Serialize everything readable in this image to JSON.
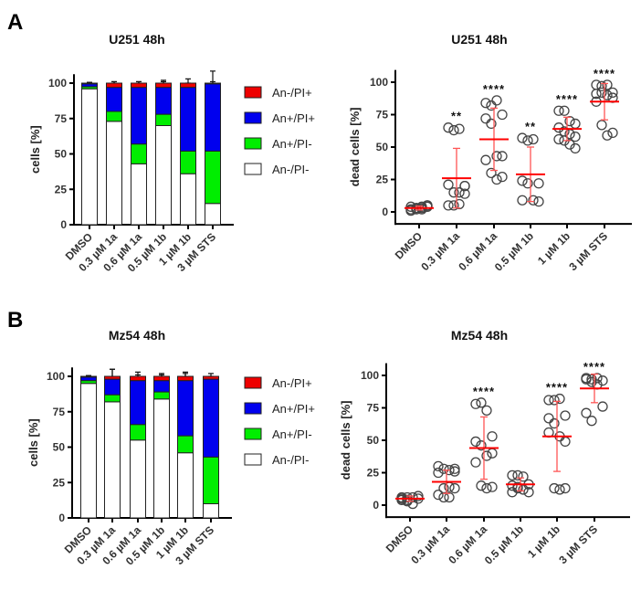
{
  "panels": [
    "A",
    "B"
  ],
  "legend": {
    "entries": [
      "An-/PI+",
      "An+/PI+",
      "An+/PI-",
      "An-/PI-"
    ],
    "colors": [
      "#ee0000",
      "#0000ee",
      "#00ee00",
      "#ffffff"
    ]
  },
  "chart_data": [
    {
      "type": "bar",
      "stacked": true,
      "panel": "A",
      "title": "U251 48h",
      "xlabel": "",
      "ylabel": "cells [%]",
      "ylim": [
        0,
        105
      ],
      "yticks": [
        "0",
        "25",
        "50",
        "75",
        "100"
      ],
      "categories": [
        "DMSO",
        "0.3 µM 1a",
        "0.6 µM 1a",
        "0.5 µM 1b",
        "1 µM 1b",
        "3 µM STS"
      ],
      "legend_position": "right",
      "series": [
        {
          "name": "An-/PI-",
          "values": [
            96,
            73,
            43,
            70,
            36,
            15
          ],
          "err": [
            1,
            1,
            24,
            8,
            9,
            14
          ]
        },
        {
          "name": "An+/PI-",
          "values": [
            1.5,
            7,
            14,
            8,
            16,
            37
          ],
          "err": [
            1,
            4,
            10,
            4,
            5,
            17
          ]
        },
        {
          "name": "An+/PI+",
          "values": [
            2,
            17,
            40,
            19,
            45,
            47.5
          ],
          "err": [
            1,
            4,
            4,
            5,
            3,
            9
          ]
        },
        {
          "name": "An-/PI+",
          "values": [
            0.5,
            3,
            3,
            3,
            3,
            0.5
          ],
          "err": [
            0.5,
            1,
            1,
            1,
            3,
            1
          ]
        }
      ]
    },
    {
      "type": "scatter",
      "panel": "A",
      "title": "U251 48h",
      "xlabel": "",
      "ylabel": "dead cells [%]",
      "ylim": [
        -5,
        108
      ],
      "yticks": [
        "0",
        "25",
        "50",
        "75",
        "100"
      ],
      "categories": [
        "DMSO",
        "0.3 µM 1a",
        "0.6 µM 1a",
        "0.5 µM 1b",
        "1 µM 1b",
        "3 µM STS"
      ],
      "points": [
        [
          2,
          3,
          4,
          5,
          1,
          2,
          3,
          5,
          4,
          3,
          2,
          4
        ],
        [
          65,
          63,
          64,
          20,
          21,
          15,
          15,
          20,
          5,
          5,
          6,
          14
        ],
        [
          84,
          82,
          86,
          75,
          72,
          68,
          43,
          43,
          40,
          30,
          25,
          27
        ],
        [
          57,
          55,
          56,
          22,
          24,
          22,
          9,
          8,
          9
        ],
        [
          78,
          78,
          70,
          68,
          65,
          62,
          60,
          58,
          56,
          55,
          52,
          49
        ],
        [
          98,
          97,
          98,
          92,
          91,
          92,
          90,
          88,
          85,
          67,
          59,
          61
        ]
      ],
      "mean": [
        3,
        26,
        56,
        29,
        64,
        85
      ],
      "sd": [
        1.5,
        23,
        24,
        21,
        9,
        14
      ],
      "significance": [
        "",
        "**",
        "****",
        "**",
        "****",
        "****"
      ]
    },
    {
      "type": "bar",
      "stacked": true,
      "panel": "B",
      "title": "Mz54 48h",
      "xlabel": "",
      "ylabel": "cells [%]",
      "ylim": [
        0,
        105
      ],
      "yticks": [
        "0",
        "25",
        "50",
        "75",
        "100"
      ],
      "categories": [
        "DMSO",
        "0.3 µM 1a",
        "0.6 µM 1a",
        "0.5 µM 1b",
        "1 µM 1b",
        "3 µM STS"
      ],
      "legend_position": "right",
      "series": [
        {
          "name": "An-/PI-",
          "values": [
            95,
            82,
            55,
            84,
            46,
            10
          ],
          "err": [
            1,
            3,
            17,
            2,
            21,
            12
          ]
        },
        {
          "name": "An+/PI-",
          "values": [
            2,
            5,
            11,
            5,
            12,
            33
          ],
          "err": [
            1,
            3,
            13,
            2,
            16,
            20
          ]
        },
        {
          "name": "An+/PI+",
          "values": [
            2.5,
            11,
            31,
            8,
            39,
            55
          ],
          "err": [
            1,
            7,
            4,
            4,
            5,
            2
          ]
        },
        {
          "name": "An-/PI+",
          "values": [
            0.5,
            2,
            3,
            3,
            3,
            2
          ],
          "err": [
            0.5,
            5,
            3,
            2,
            3,
            2
          ]
        }
      ]
    },
    {
      "type": "scatter",
      "panel": "B",
      "title": "Mz54 48h",
      "xlabel": "",
      "ylabel": "dead cells [%]",
      "ylim": [
        -5,
        108
      ],
      "yticks": [
        "0",
        "25",
        "50",
        "75",
        "100"
      ],
      "categories": [
        "DMSO",
        "0.3 µM 1a",
        "0.6 µM 1a",
        "0.5 µM 1b",
        "1 µM 1b",
        "3 µM STS"
      ],
      "points": [
        [
          5,
          6,
          6,
          7,
          4,
          3,
          1,
          5,
          6,
          4
        ],
        [
          30,
          28,
          27,
          26,
          25,
          13,
          14,
          13,
          8,
          6,
          6,
          28
        ],
        [
          78,
          79,
          73,
          53,
          49,
          46,
          38,
          40,
          33,
          15,
          13,
          14
        ],
        [
          23,
          23,
          22,
          16,
          15,
          14,
          12,
          10,
          10,
          13
        ],
        [
          81,
          81,
          82,
          69,
          67,
          63,
          53,
          49,
          56,
          13,
          12,
          13
        ],
        [
          98,
          97,
          98,
          96,
          97,
          95,
          93,
          76,
          71,
          65
        ]
      ],
      "mean": [
        5,
        18,
        44,
        16,
        53,
        90
      ],
      "sd": [
        2,
        9,
        24,
        5,
        27,
        11
      ],
      "significance": [
        "",
        "",
        "****",
        "",
        "****",
        "****"
      ]
    }
  ]
}
